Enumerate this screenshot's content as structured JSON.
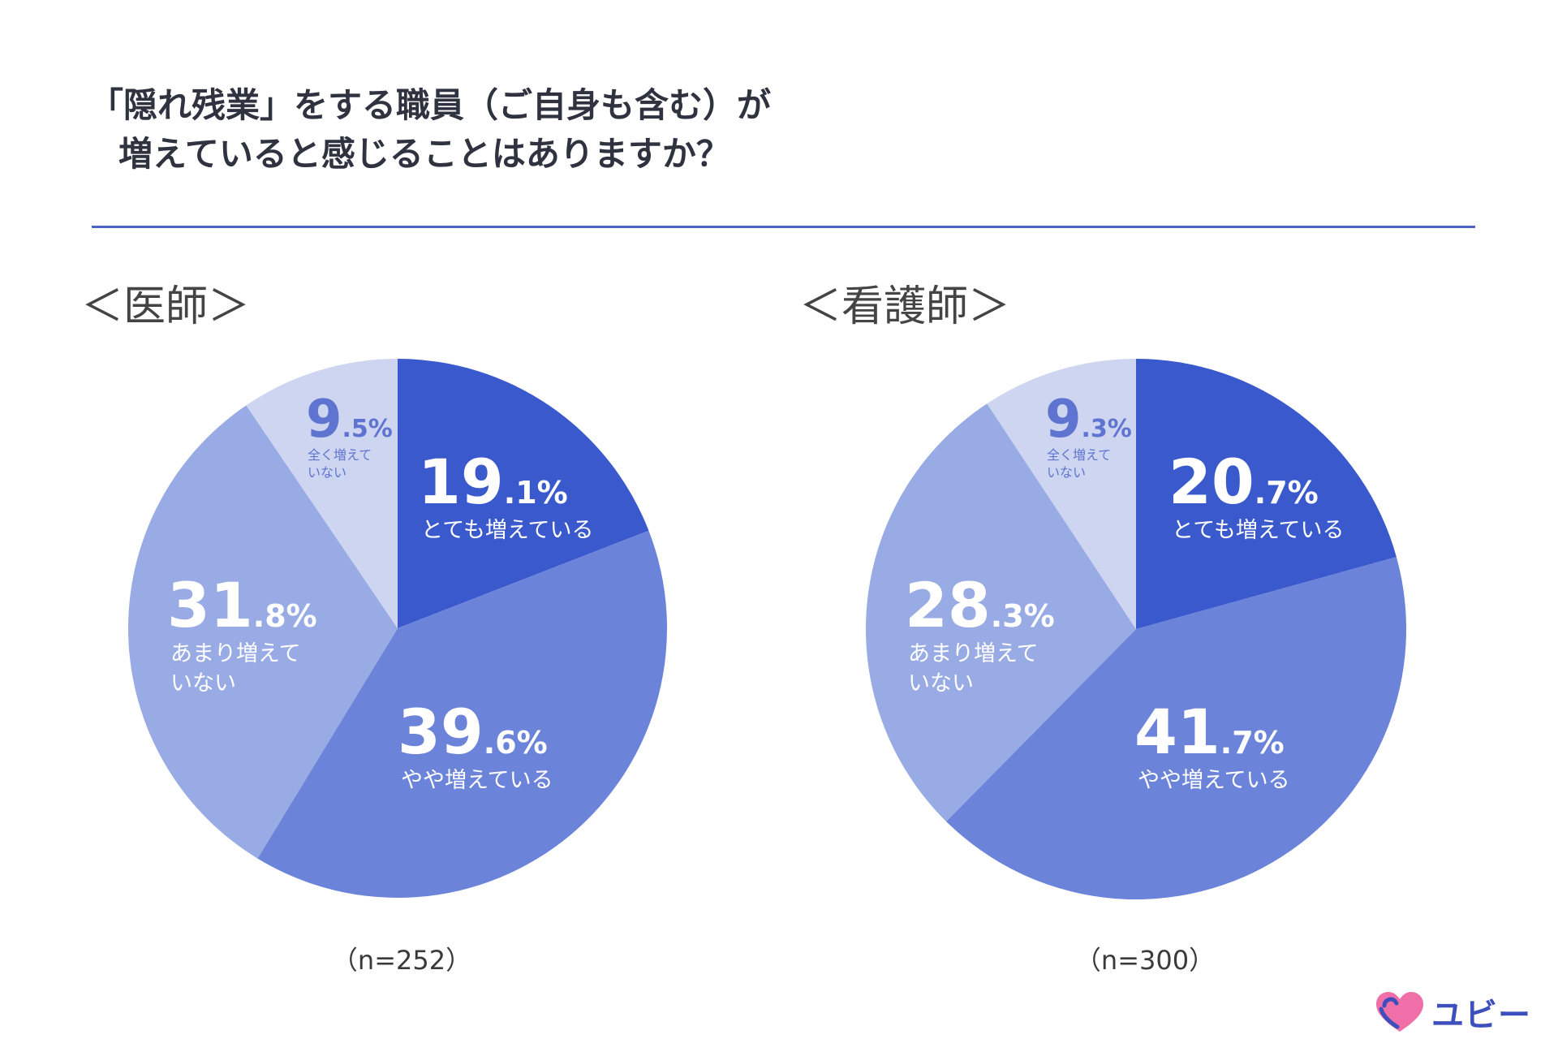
{
  "title": {
    "line1": "「隠れ残業」をする職員（ご自身も含む）が",
    "line2": "増えていると感じることはありますか？"
  },
  "colors": {
    "c1": "#3a59cc",
    "c2": "#6c83da",
    "c3": "#99abe4",
    "c4": "#cdd5f1",
    "small_label": "#5f74d0"
  },
  "logo": {
    "text": "ユビー",
    "icon": "heart-icon"
  },
  "chart_data": [
    {
      "type": "pie",
      "title": "＜医師＞",
      "sample": "（n=252）",
      "slices": [
        {
          "label": "とても増えている",
          "int": "19",
          "dec": ".1%",
          "value": 19.1
        },
        {
          "label": "やや増えている",
          "int": "39",
          "dec": ".6%",
          "value": 39.6
        },
        {
          "label": "あまり増えて いない",
          "int": "31",
          "dec": ".8%",
          "value": 31.8
        },
        {
          "label": "全く増えて いない",
          "int": "9",
          "dec": ".5%",
          "value": 9.5
        }
      ]
    },
    {
      "type": "pie",
      "title": "＜看護師＞",
      "sample": "（n=300）",
      "slices": [
        {
          "label": "とても増えている",
          "int": "20",
          "dec": ".7%",
          "value": 20.7
        },
        {
          "label": "やや増えている",
          "int": "41",
          "dec": ".7%",
          "value": 41.7
        },
        {
          "label": "あまり増えて いない",
          "int": "28",
          "dec": ".3%",
          "value": 28.3
        },
        {
          "label": "全く増えて いない",
          "int": "9",
          "dec": ".3%",
          "value": 9.3
        }
      ]
    }
  ]
}
